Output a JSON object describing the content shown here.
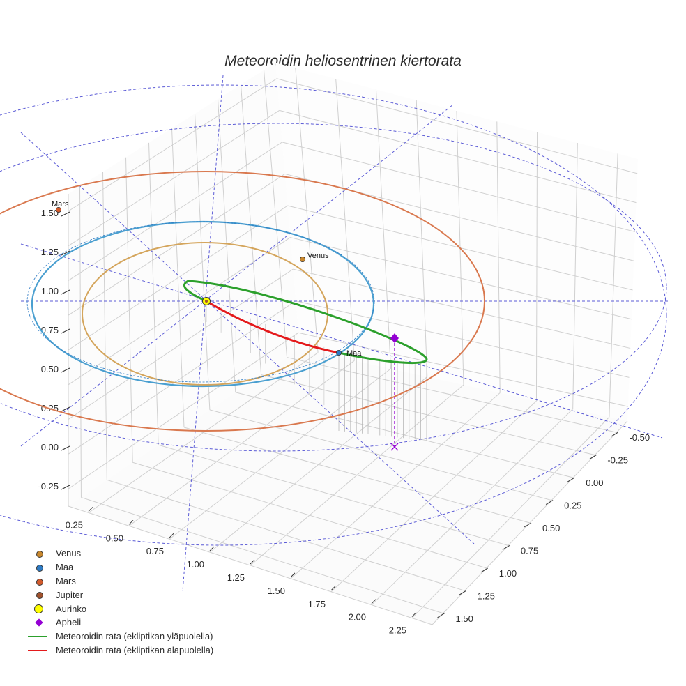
{
  "chart_data": {
    "type": "3d-line",
    "title": "Meteoroidin heliosentrinen kiertorata",
    "x_ticks": [
      "-0.50",
      "-0.25",
      "0.00",
      "0.25",
      "0.50",
      "0.75",
      "1.00",
      "1.25",
      "1.50"
    ],
    "y_ticks": [
      "0.25",
      "0.50",
      "0.75",
      "1.00",
      "1.25",
      "1.50",
      "1.75",
      "2.00",
      "2.25"
    ],
    "z_ticks": [
      "1.50",
      "1.25",
      "1.00",
      "0.75",
      "0.50",
      "0.25",
      "0.00",
      "-0.25"
    ],
    "bodies": [
      {
        "name": "Venus",
        "label": "Venus",
        "color": "#c9882e",
        "orbit_color": "#d4a55c"
      },
      {
        "name": "Maa",
        "label": "Maa",
        "color": "#2e7bc4",
        "orbit_color": "#4a9fd0"
      },
      {
        "name": "Mars",
        "label": "Mars",
        "color": "#d35b2c",
        "orbit_color": "#d9784e"
      },
      {
        "name": "Jupiter",
        "label": "",
        "color": "#a0522d"
      },
      {
        "name": "Aurinko",
        "label": "",
        "color": "#ffff00"
      }
    ],
    "apheli": {
      "name": "Apheli",
      "color": "#9400d3"
    },
    "series": [
      {
        "name": "Meteoroidin rata (ekliptikan yläpuolella)",
        "color": "#2ca02c"
      },
      {
        "name": "Meteoroidin rata (ekliptikan alapuolella)",
        "color": "#e41a1c"
      }
    ],
    "grid": true,
    "legend_position": "bottom-left"
  },
  "legend": [
    {
      "label": "Venus",
      "kind": "dot",
      "color": "#c9882e"
    },
    {
      "label": "Maa",
      "kind": "dot",
      "color": "#2e7bc4"
    },
    {
      "label": "Mars",
      "kind": "dot",
      "color": "#d35b2c"
    },
    {
      "label": "Jupiter",
      "kind": "dot",
      "color": "#a0522d"
    },
    {
      "label": "Aurinko",
      "kind": "bigdot",
      "color": "#ffff00"
    },
    {
      "label": "Apheli",
      "kind": "diamond",
      "color": "#9400d3"
    },
    {
      "label": "Meteoroidin rata (ekliptikan yläpuolella)",
      "kind": "line",
      "color": "#2ca02c"
    },
    {
      "label": "Meteoroidin rata (ekliptikan alapuolella)",
      "kind": "line",
      "color": "#e41a1c"
    }
  ]
}
